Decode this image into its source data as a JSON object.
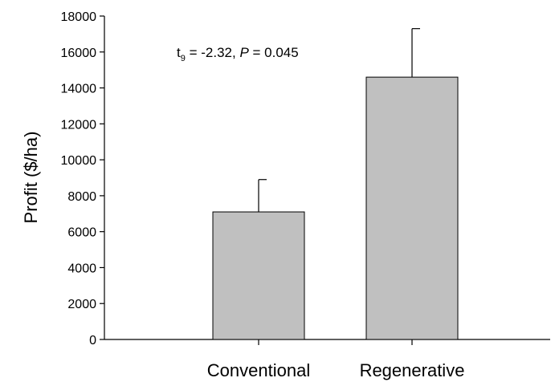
{
  "chart_data": {
    "type": "bar",
    "categories": [
      "Conventional",
      "Regenerative"
    ],
    "values": [
      7100,
      14600
    ],
    "error_upper": [
      8900,
      17300
    ],
    "title": "",
    "xlabel": "",
    "ylabel": "Profit ($/ha)",
    "ylim": [
      0,
      18000
    ],
    "yticks": [
      0,
      2000,
      4000,
      6000,
      8000,
      10000,
      12000,
      14000,
      16000,
      18000
    ],
    "annotation": {
      "t_symbol": "t",
      "df": "9",
      "t_rest": " = -2.32, ",
      "p_symbol": "P",
      "p_rest": " = 0.045"
    },
    "bar_color": "#c0c0c0",
    "grid": false,
    "legend": "none"
  }
}
